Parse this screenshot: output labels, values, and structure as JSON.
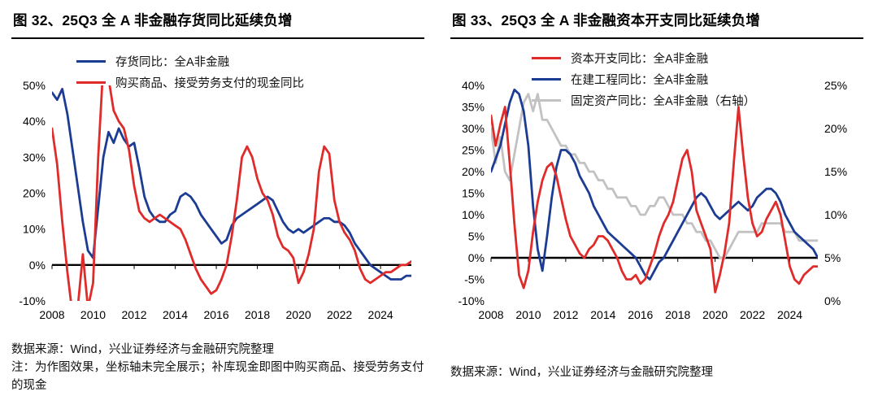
{
  "page": {
    "background": "#ffffff"
  },
  "panels": {
    "left": {
      "source": "数据来源：Wind，兴业证券经济与金融研究院整理",
      "note": "注：为作图效果，坐标轴未完全展示；补库现金即图中购买商品、接受劳务支付的现金"
    },
    "right": {
      "source": "数据来源：Wind，兴业证券经济与金融研究院整理"
    }
  },
  "chart_data": [
    {
      "type": "line",
      "title": "图 32、25Q3 全 A 非金融存货同比延续负增",
      "x_start": 2008,
      "x_step": 0.25,
      "xticks": [
        2008,
        2010,
        2012,
        2014,
        2016,
        2018,
        2020,
        2022,
        2024
      ],
      "ylim": [
        -10,
        50
      ],
      "ytick_step": 10,
      "grid": false,
      "legend_position": "top-left-inside",
      "axis_color": "#000000",
      "series": [
        {
          "name": "存货同比：全A非金融",
          "color": "#1C3C94",
          "axis": "left",
          "z": 1,
          "values": [
            48,
            46,
            49,
            42,
            32,
            22,
            12,
            4,
            2,
            16,
            30,
            37,
            34,
            38,
            35,
            33,
            34,
            27,
            19,
            15,
            13,
            12,
            12,
            14,
            15,
            19,
            20,
            19,
            17,
            14,
            12,
            10,
            8,
            6,
            7,
            11,
            13,
            14,
            15,
            16,
            17,
            18,
            19,
            18,
            15,
            12,
            10,
            9,
            10,
            9,
            10,
            11,
            12,
            13,
            13,
            12,
            12,
            11,
            9,
            6,
            4,
            2,
            0,
            -1,
            -2,
            -3,
            -4,
            -4,
            -4,
            -3,
            -3
          ]
        },
        {
          "name": "购买商品、接受劳务支付的现金同比",
          "color": "#E02B2B",
          "axis": "left",
          "z": 2,
          "values": [
            38,
            28,
            12,
            -2,
            -14,
            -12,
            3,
            -12,
            -5,
            30,
            56,
            52,
            43,
            40,
            38,
            32,
            22,
            15,
            13,
            12,
            13,
            14,
            13,
            12,
            11,
            10,
            7,
            3,
            -1,
            -4,
            -6,
            -8,
            -7,
            -4,
            0,
            8,
            18,
            30,
            33,
            30,
            24,
            20,
            18,
            14,
            8,
            5,
            4,
            2,
            -5,
            -2,
            3,
            10,
            26,
            33,
            31,
            18,
            12,
            9,
            7,
            4,
            -1,
            -4,
            -5,
            -4,
            -3,
            -2,
            -2,
            -1,
            0,
            0,
            1
          ]
        }
      ]
    },
    {
      "type": "line",
      "title": "图 33、25Q3 全 A 非金融资本开支同比延续负增",
      "x_start": 2008,
      "x_step": 0.25,
      "xticks": [
        2008,
        2010,
        2012,
        2014,
        2016,
        2018,
        2020,
        2022,
        2024
      ],
      "ylim": [
        -10,
        40
      ],
      "ytick_step": 5,
      "right_ylim": [
        0,
        25
      ],
      "right_ytick_step": 5,
      "grid": false,
      "legend_position": "top-left-inside",
      "axis_color": "#000000",
      "series": [
        {
          "name": "资本开支同比：全A非金融",
          "color": "#E02B2B",
          "axis": "left",
          "z": 3,
          "values": [
            33,
            26,
            31,
            35,
            22,
            8,
            -4,
            -7,
            -3,
            6,
            13,
            18,
            21,
            22,
            19,
            14,
            9,
            5,
            3,
            1,
            0,
            2,
            3,
            5,
            5,
            4,
            2,
            0,
            -3,
            -5,
            -5,
            -4,
            -6,
            -5,
            -2,
            1,
            5,
            8,
            10,
            13,
            18,
            23,
            25,
            20,
            11,
            8,
            5,
            2,
            -8,
            -4,
            1,
            8,
            22,
            35,
            24,
            14,
            8,
            5,
            6,
            9,
            11,
            13,
            10,
            4,
            -2,
            -5,
            -6,
            -4,
            -3,
            -2,
            -2
          ]
        },
        {
          "name": "在建工程同比：全A非金融",
          "color": "#1C3C94",
          "axis": "left",
          "z": 2,
          "values": [
            20,
            23,
            26,
            31,
            36,
            39,
            38,
            34,
            26,
            12,
            2,
            -3,
            5,
            14,
            21,
            25,
            25,
            24,
            22,
            19,
            17,
            15,
            12,
            10,
            8,
            6,
            5,
            4,
            3,
            2,
            1,
            0,
            -2,
            -4,
            -5,
            -3,
            -1,
            0,
            2,
            4,
            6,
            8,
            10,
            12,
            14,
            15,
            14,
            12,
            10,
            9,
            10,
            11,
            12,
            13,
            12,
            11,
            12,
            14,
            15,
            16,
            16,
            15,
            13,
            10,
            8,
            6,
            5,
            4,
            3,
            2,
            0
          ]
        },
        {
          "name": "固定资产同比：全A非金融（右轴）",
          "color": "#C2C2C2",
          "axis": "right",
          "z": 1,
          "values": [
            20,
            16,
            19,
            15,
            14,
            17,
            20,
            23,
            24,
            22,
            24,
            21,
            21,
            20,
            19,
            18,
            18,
            17,
            17,
            16,
            16,
            15,
            15,
            14,
            14,
            13,
            13,
            12,
            12,
            12,
            11,
            11,
            10,
            10,
            11,
            11,
            12,
            12,
            11,
            10,
            10,
            10,
            9,
            9,
            8,
            8,
            7,
            7,
            6,
            5,
            5,
            6,
            7,
            8,
            8,
            8,
            8,
            8,
            9,
            9,
            9,
            9,
            9,
            8,
            8,
            8,
            7,
            7,
            7,
            7,
            7
          ]
        }
      ]
    }
  ]
}
